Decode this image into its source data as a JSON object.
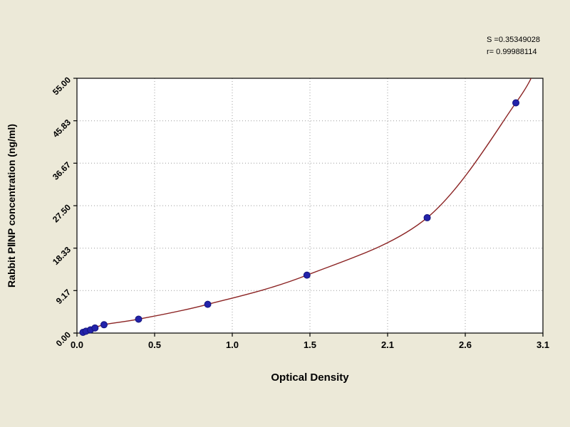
{
  "chart_data": {
    "type": "scatter",
    "title": "",
    "xlabel": "Optical Density",
    "ylabel": "Rabbit PⅡNP concentration (ng/ml)",
    "xlim": [
      0,
      3.1
    ],
    "ylim": [
      0,
      55
    ],
    "x_tick_labels": [
      "0.0",
      "0.5",
      "1.0",
      "1.5",
      "2.1",
      "2.6",
      "3.1"
    ],
    "y_ticks": [
      {
        "value": 0,
        "label": "0.00"
      },
      {
        "value": 9.17,
        "label": "9.17"
      },
      {
        "value": 18.33,
        "label": "18.33"
      },
      {
        "value": 27.5,
        "label": "27.50"
      },
      {
        "value": 36.67,
        "label": "36.67"
      },
      {
        "value": 45.83,
        "label": "45.83"
      },
      {
        "value": 55,
        "label": "55.00"
      }
    ],
    "points": [
      [
        0.04,
        0.15
      ],
      [
        0.06,
        0.4
      ],
      [
        0.09,
        0.7
      ],
      [
        0.12,
        1.1
      ],
      [
        0.18,
        1.8
      ],
      [
        0.41,
        3.0
      ],
      [
        0.87,
        6.2
      ],
      [
        1.53,
        12.5
      ],
      [
        2.33,
        24.9
      ],
      [
        2.92,
        49.7
      ]
    ],
    "curve_anchor_points": [
      [
        0.02,
        0.0
      ],
      [
        0.18,
        1.8
      ],
      [
        0.41,
        3.0
      ],
      [
        0.87,
        6.2
      ],
      [
        1.53,
        12.5
      ],
      [
        2.33,
        24.9
      ],
      [
        2.92,
        49.7
      ],
      [
        3.06,
        58.0
      ]
    ],
    "annotations": {
      "s_value": "S =0.35349028",
      "r_value": "r= 0.99988114"
    },
    "grid": "dotted",
    "legend": "none",
    "colors": {
      "background": "#ece9d8",
      "plot_background": "#ffffff",
      "curve": "#8b2323",
      "point_fill": "#2323aa",
      "point_edge": "#15157e",
      "grid": "#9c9c9c",
      "axis": "#000000",
      "text": "#000000"
    }
  }
}
